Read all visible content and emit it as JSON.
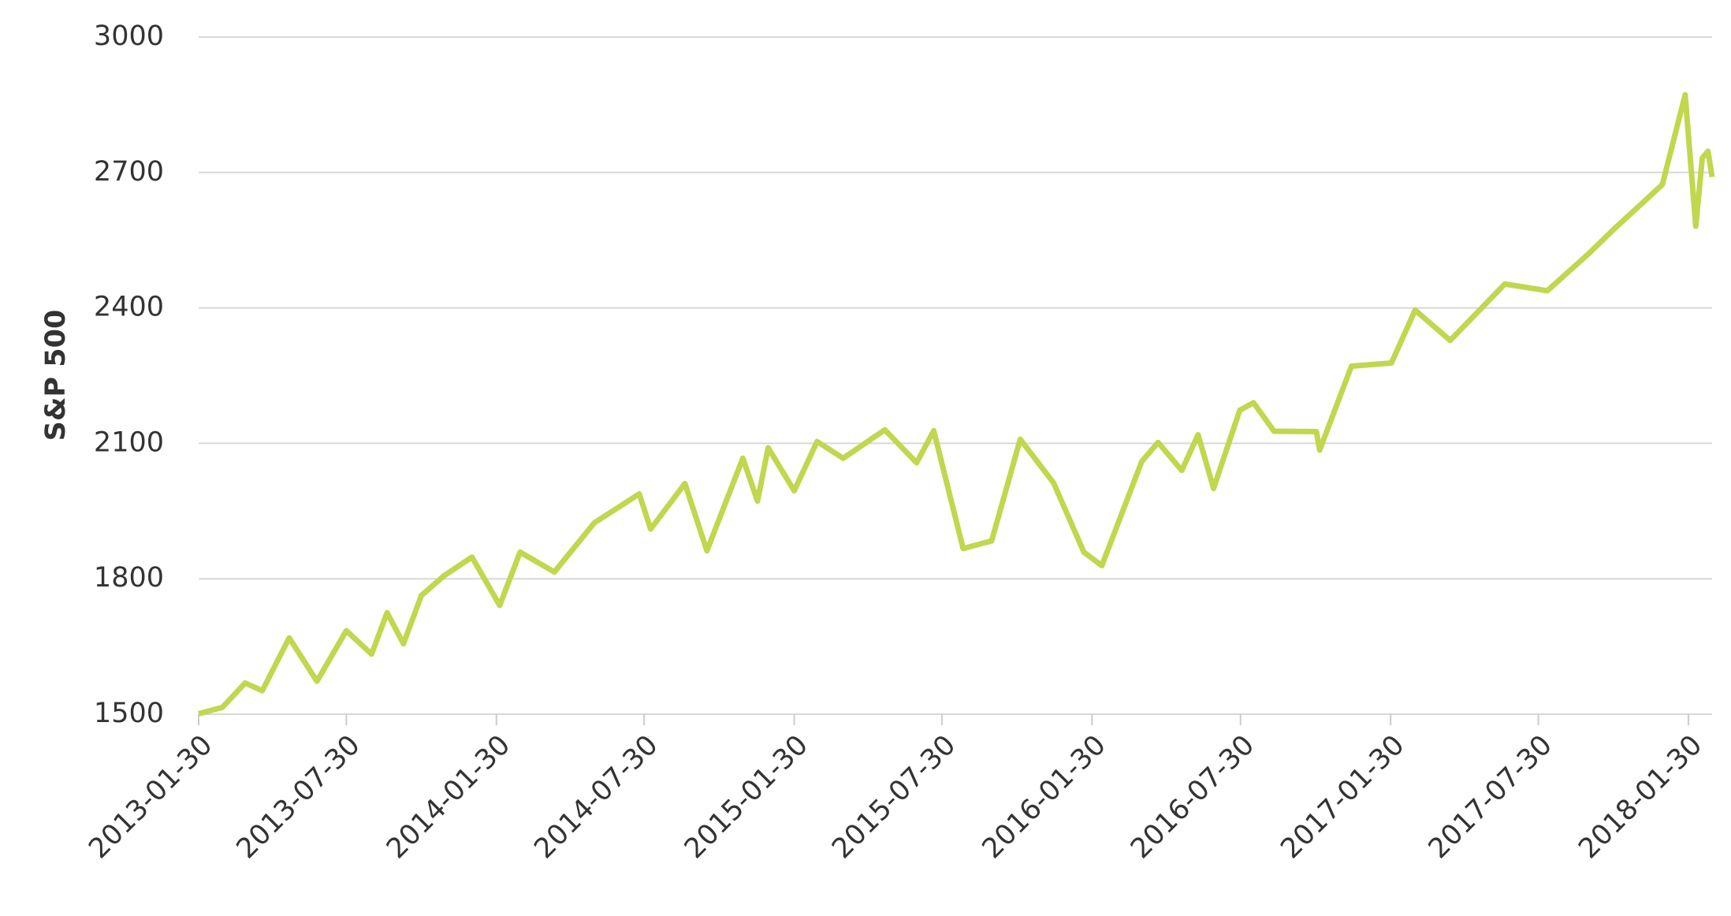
{
  "chart_data": {
    "type": "line",
    "y_label": "S&P 500",
    "x": [
      "2013-01-30",
      "2013-02-28",
      "2013-03-28",
      "2013-04-18",
      "2013-05-21",
      "2013-06-24",
      "2013-07-30",
      "2013-08-30",
      "2013-09-18",
      "2013-10-08",
      "2013-10-30",
      "2013-11-27",
      "2013-12-31",
      "2014-02-03",
      "2014-02-28",
      "2014-04-11",
      "2014-05-30",
      "2014-06-30",
      "2014-07-24",
      "2014-08-07",
      "2014-09-18",
      "2014-10-15",
      "2014-11-28",
      "2014-12-16",
      "2014-12-29",
      "2015-01-30",
      "2015-02-27",
      "2015-03-31",
      "2015-05-21",
      "2015-06-29",
      "2015-07-20",
      "2015-08-25",
      "2015-09-29",
      "2015-11-03",
      "2015-12-14",
      "2016-01-20",
      "2016-02-11",
      "2016-03-31",
      "2016-04-20",
      "2016-05-19",
      "2016-06-08",
      "2016-06-27",
      "2016-07-29",
      "2016-08-15",
      "2016-09-09",
      "2016-10-31",
      "2016-11-04",
      "2016-12-13",
      "2017-01-31",
      "2017-03-01",
      "2017-04-13",
      "2017-06-19",
      "2017-08-10",
      "2017-09-29",
      "2017-10-31",
      "2017-12-29",
      "2018-01-26",
      "2018-02-08",
      "2018-02-16",
      "2018-02-23",
      "2018-02-28"
    ],
    "series": [
      {
        "name": "S&P 500",
        "color": "#c2d64e",
        "values": [
          1501,
          1515,
          1569,
          1552,
          1669,
          1573,
          1685,
          1633,
          1725,
          1656,
          1763,
          1807,
          1848,
          1741,
          1859,
          1815,
          1924,
          1960,
          1988,
          1910,
          2011,
          1862,
          2067,
          1972,
          2090,
          1995,
          2104,
          2067,
          2130,
          2057,
          2128,
          1867,
          1884,
          2109,
          2012,
          1859,
          1829,
          2060,
          2102,
          2040,
          2119,
          2000,
          2173,
          2190,
          2127,
          2126,
          2085,
          2271,
          2278,
          2395,
          2328,
          2453,
          2438,
          2519,
          2575,
          2673,
          2872,
          2581,
          2732,
          2747,
          2690
        ]
      }
    ],
    "xlim": [
      "2013-01-30",
      "2018-02-28"
    ],
    "xticks": [
      "2013-01-30",
      "2013-07-30",
      "2014-01-30",
      "2014-07-30",
      "2015-01-30",
      "2015-07-30",
      "2016-01-30",
      "2016-07-30",
      "2017-01-30",
      "2017-07-30",
      "2018-01-30"
    ],
    "ylim": [
      1500,
      3000
    ],
    "yticks": [
      1500,
      1800,
      2100,
      2400,
      2700,
      3000
    ],
    "grid": true
  }
}
